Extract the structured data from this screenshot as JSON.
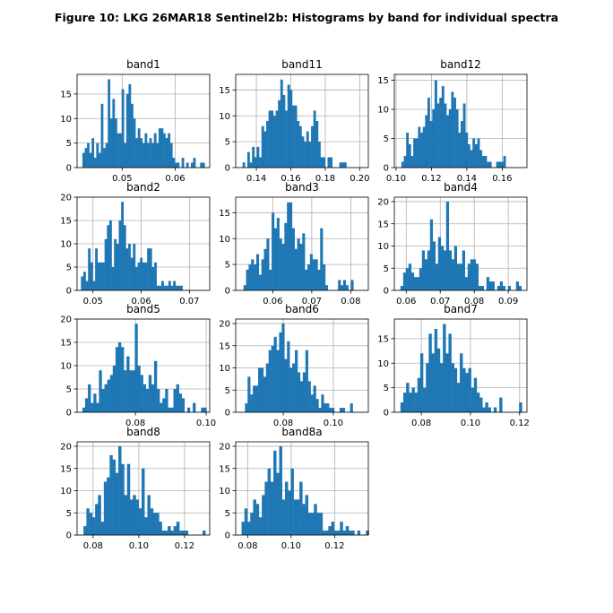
{
  "title": "Figure 10: LKG 26MAR18  Sentinel2b: Histograms by band for individual spectra",
  "colors": {
    "bar": "#1f77b4",
    "grid": "#b0b0b0",
    "background": "#ffffff"
  },
  "chart_data": [
    {
      "type": "bar",
      "title": "band1",
      "grid": true,
      "xlim": [
        0.0415,
        0.0665
      ],
      "ylim": [
        0,
        19
      ],
      "xticks": [
        0.05,
        0.06
      ],
      "xtick_labels": [
        "0.05",
        "0.06"
      ],
      "yticks": [
        0,
        5,
        10,
        15
      ],
      "ytick_labels": [
        "0",
        "5",
        "10",
        "15"
      ],
      "bin_start": 0.0425,
      "bin_width": 0.000435,
      "counts": [
        3,
        4,
        5,
        3,
        6,
        2,
        5,
        3,
        13,
        4,
        5,
        18,
        10,
        14,
        10,
        7,
        7,
        16,
        5,
        15,
        17,
        13,
        10,
        6,
        8,
        6,
        5,
        7,
        5,
        6,
        5,
        7,
        5,
        8,
        8,
        7,
        6,
        7,
        5,
        2,
        1,
        1,
        0,
        2,
        0,
        1,
        0,
        1,
        2,
        0,
        0,
        1,
        1
      ]
    },
    {
      "type": "bar",
      "title": "band11",
      "grid": true,
      "xlim": [
        0.128,
        0.205
      ],
      "ylim": [
        0,
        18
      ],
      "xticks": [
        0.14,
        0.16,
        0.18,
        0.2
      ],
      "xtick_labels": [
        "0.14",
        "0.16",
        "0.18",
        "0.20"
      ],
      "yticks": [
        0,
        5,
        10,
        15
      ],
      "ytick_labels": [
        "0",
        "5",
        "10",
        "15"
      ],
      "bin_start": 0.132,
      "bin_width": 0.00137,
      "counts": [
        1,
        0,
        3,
        1,
        4,
        2,
        4,
        2,
        8,
        7,
        9,
        11,
        11,
        10,
        11,
        13,
        17,
        14,
        11,
        16,
        15,
        12,
        12,
        9,
        8,
        6,
        5,
        7,
        5,
        8,
        11,
        9,
        5,
        2,
        2,
        0,
        2,
        2,
        0,
        0,
        0,
        1,
        1,
        1
      ]
    },
    {
      "type": "bar",
      "title": "band12",
      "grid": true,
      "xlim": [
        0.099,
        0.174
      ],
      "ylim": [
        0,
        16
      ],
      "xticks": [
        0.1,
        0.12,
        0.14,
        0.16
      ],
      "xtick_labels": [
        "0.10",
        "0.12",
        "0.14",
        "0.16"
      ],
      "yticks": [
        0,
        5,
        10,
        15
      ],
      "ytick_labels": [
        "0",
        "5",
        "10",
        "15"
      ],
      "bin_start": 0.103,
      "bin_width": 0.00134,
      "counts": [
        1,
        2,
        6,
        4,
        2,
        5,
        5,
        7,
        6,
        7,
        9,
        12,
        8,
        10,
        15,
        11,
        12,
        14,
        11,
        9,
        10,
        13,
        12,
        10,
        6,
        8,
        11,
        6,
        4,
        3,
        5,
        4,
        5,
        3,
        2,
        2,
        1,
        1,
        0,
        0,
        1,
        1,
        1,
        2
      ]
    },
    {
      "type": "bar",
      "title": "band2",
      "grid": true,
      "xlim": [
        0.0467,
        0.0742
      ],
      "ylim": [
        0,
        20
      ],
      "xticks": [
        0.05,
        0.06,
        0.07
      ],
      "xtick_labels": [
        "0.05",
        "0.06",
        "0.07"
      ],
      "yticks": [
        0,
        5,
        10,
        15,
        20
      ],
      "ytick_labels": [
        "0",
        "5",
        "10",
        "15",
        "20"
      ],
      "bin_start": 0.0475,
      "bin_width": 0.00049,
      "counts": [
        3,
        4,
        2,
        9,
        6,
        2,
        9,
        6,
        6,
        6,
        11,
        14,
        15,
        5,
        11,
        10,
        15,
        19,
        14,
        9,
        10,
        7,
        10,
        5,
        6,
        7,
        6,
        6,
        9,
        9,
        5,
        6,
        1,
        1,
        2,
        1,
        1,
        2,
        1,
        2,
        1,
        1,
        1
      ]
    },
    {
      "type": "bar",
      "title": "band3",
      "grid": true,
      "xlim": [
        0.0505,
        0.0845
      ],
      "ylim": [
        0,
        18
      ],
      "xticks": [
        0.06,
        0.07,
        0.08
      ],
      "xtick_labels": [
        "0.06",
        "0.07",
        "0.08"
      ],
      "yticks": [
        0,
        5,
        10,
        15
      ],
      "ytick_labels": [
        "0",
        "5",
        "10",
        "15"
      ],
      "bin_start": 0.0525,
      "bin_width": 0.000655,
      "counts": [
        1,
        4,
        5,
        6,
        5,
        7,
        3,
        6,
        8,
        10,
        4,
        15,
        12,
        14,
        10,
        9,
        13,
        17,
        17,
        12,
        8,
        10,
        9,
        11,
        4,
        5,
        7,
        6,
        6,
        4,
        12,
        5,
        1,
        0,
        0,
        0,
        0,
        2,
        1,
        2,
        1,
        0,
        2
      ]
    },
    {
      "type": "bar",
      "title": "band4",
      "grid": true,
      "xlim": [
        0.0565,
        0.0955
      ],
      "ylim": [
        0,
        21
      ],
      "xticks": [
        0.06,
        0.07,
        0.08,
        0.09
      ],
      "xtick_labels": [
        "0.06",
        "0.07",
        "0.08",
        "0.09"
      ],
      "yticks": [
        0,
        5,
        10,
        15,
        20
      ],
      "ytick_labels": [
        "0",
        "5",
        "10",
        "15",
        "20"
      ],
      "bin_start": 0.0583,
      "bin_width": 0.00079,
      "counts": [
        1,
        4,
        5,
        6,
        4,
        3,
        3,
        5,
        9,
        7,
        9,
        16,
        11,
        6,
        12,
        10,
        9,
        20,
        9,
        7,
        10,
        6,
        6,
        9,
        3,
        6,
        7,
        7,
        6,
        1,
        1,
        0,
        3,
        2,
        2,
        0,
        1,
        2,
        1,
        0,
        1,
        0,
        0,
        2,
        1
      ]
    },
    {
      "type": "bar",
      "title": "band5",
      "grid": true,
      "xlim": [
        0.0635,
        0.101
      ],
      "ylim": [
        0,
        20
      ],
      "xticks": [
        0.08,
        0.1
      ],
      "xtick_labels": [
        "0.08",
        "0.10"
      ],
      "yticks": [
        0,
        5,
        10,
        15,
        20
      ],
      "ytick_labels": [
        "0",
        "5",
        "10",
        "15",
        "20"
      ],
      "bin_start": 0.065,
      "bin_width": 0.00078,
      "counts": [
        1,
        3,
        6,
        2,
        4,
        2,
        9,
        5,
        6,
        7,
        8,
        10,
        14,
        15,
        14,
        9,
        12,
        9,
        9,
        19,
        10,
        8,
        6,
        5,
        8,
        6,
        11,
        5,
        2,
        3,
        5,
        1,
        1,
        5,
        6,
        4,
        3,
        0,
        1,
        0,
        2,
        0,
        0,
        1,
        1
      ]
    },
    {
      "type": "bar",
      "title": "band6",
      "grid": true,
      "xlim": [
        0.061,
        0.114
      ],
      "ylim": [
        0,
        21
      ],
      "xticks": [
        0.08,
        0.1
      ],
      "xtick_labels": [
        "0.08",
        "0.10"
      ],
      "yticks": [
        0,
        5,
        10,
        15,
        20
      ],
      "ytick_labels": [
        "0",
        "5",
        "10",
        "15",
        "20"
      ],
      "bin_start": 0.0647,
      "bin_width": 0.00105,
      "counts": [
        2,
        8,
        4,
        6,
        6,
        10,
        10,
        8,
        11,
        14,
        15,
        17,
        14,
        18,
        20,
        12,
        16,
        10,
        11,
        14,
        9,
        7,
        9,
        14,
        7,
        4,
        6,
        3,
        1,
        4,
        2,
        2,
        1,
        1,
        0,
        0,
        1,
        1,
        0,
        0,
        2
      ]
    },
    {
      "type": "bar",
      "title": "band7",
      "grid": true,
      "xlim": [
        0.069,
        0.123
      ],
      "ylim": [
        0,
        19
      ],
      "xticks": [
        0.08,
        0.1,
        0.12
      ],
      "xtick_labels": [
        "0.08",
        "0.10",
        "0.12"
      ],
      "yticks": [
        0,
        5,
        10,
        15
      ],
      "ytick_labels": [
        "0",
        "5",
        "10",
        "15"
      ],
      "bin_start": 0.0715,
      "bin_width": 0.00115,
      "counts": [
        2,
        4,
        6,
        4,
        5,
        4,
        7,
        12,
        5,
        10,
        16,
        12,
        17,
        13,
        10,
        18,
        12,
        16,
        10,
        9,
        6,
        12,
        9,
        8,
        9,
        5,
        7,
        4,
        3,
        1,
        2,
        1,
        0,
        1,
        0,
        3,
        0,
        0,
        0,
        0,
        0,
        0,
        2,
        0
      ]
    },
    {
      "type": "bar",
      "title": "band8",
      "grid": true,
      "xlim": [
        0.073,
        0.131
      ],
      "ylim": [
        0,
        21
      ],
      "xticks": [
        0.08,
        0.1,
        0.12
      ],
      "xtick_labels": [
        "0.08",
        "0.10",
        "0.12"
      ],
      "yticks": [
        0,
        5,
        10,
        15,
        20
      ],
      "ytick_labels": [
        "0",
        "5",
        "10",
        "15",
        "20"
      ],
      "bin_start": 0.0758,
      "bin_width": 0.00127,
      "counts": [
        2,
        6,
        5,
        4,
        7,
        9,
        3,
        12,
        13,
        18,
        17,
        14,
        20,
        16,
        9,
        16,
        8,
        9,
        8,
        6,
        15,
        4,
        9,
        6,
        5,
        5,
        3,
        1,
        1,
        2,
        1,
        2,
        3,
        1,
        1,
        1,
        0,
        0,
        0,
        0,
        0,
        1
      ]
    },
    {
      "type": "bar",
      "title": "band8a",
      "grid": true,
      "xlim": [
        0.0745,
        0.1355
      ],
      "ylim": [
        0,
        21
      ],
      "xticks": [
        0.08,
        0.1,
        0.12
      ],
      "xtick_labels": [
        "0.08",
        "0.10",
        "0.12"
      ],
      "yticks": [
        0,
        5,
        10,
        15,
        20
      ],
      "ytick_labels": [
        "0",
        "5",
        "10",
        "15",
        "20"
      ],
      "bin_start": 0.0772,
      "bin_width": 0.00133,
      "counts": [
        3,
        6,
        3,
        5,
        8,
        7,
        4,
        9,
        12,
        15,
        12,
        19,
        14,
        20,
        8,
        12,
        10,
        15,
        8,
        8,
        12,
        7,
        9,
        5,
        5,
        7,
        5,
        5,
        1,
        1,
        2,
        3,
        1,
        1,
        3,
        1,
        2,
        1,
        1,
        0,
        1,
        0,
        0,
        1
      ]
    }
  ]
}
